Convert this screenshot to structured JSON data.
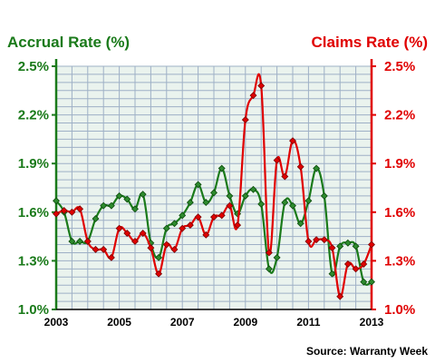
{
  "chart_data": {
    "type": "line",
    "title_left": "Accrual Rate (%)",
    "title_right": "Claims Rate (%)",
    "source": "Source: Warranty Week",
    "x_ticks": [
      "2003",
      "2005",
      "2007",
      "2009",
      "2011",
      "2013"
    ],
    "y_ticks_left": [
      "2.5%",
      "2.2%",
      "1.9%",
      "1.6%",
      "1.3%",
      "1.0%"
    ],
    "y_ticks_right": [
      "2.5%",
      "2.2%",
      "1.9%",
      "1.6%",
      "1.3%",
      "1.0%"
    ],
    "xlim": [
      2003,
      2013
    ],
    "ylim_left": [
      1.0,
      2.5
    ],
    "ylim_right": [
      1.0,
      2.5
    ],
    "grid": true,
    "colors": {
      "accrual": "#1a7a1a",
      "accrual_marker": "#2e8b2e",
      "claims": "#e00000",
      "claims_marker": "#e00000",
      "left_axis": "#1a7a1a",
      "right_axis": "#e00000",
      "grid": "#9eb0c6",
      "plot_bg": "#eaf3ee"
    },
    "series": [
      {
        "name": "Accrual Rate",
        "axis": "left",
        "x": [
          2003.0,
          2003.25,
          2003.5,
          2003.75,
          2004.0,
          2004.25,
          2004.5,
          2004.75,
          2005.0,
          2005.25,
          2005.5,
          2005.75,
          2006.0,
          2006.25,
          2006.5,
          2006.75,
          2007.0,
          2007.25,
          2007.5,
          2007.75,
          2008.0,
          2008.25,
          2008.5,
          2008.75,
          2009.0,
          2009.25,
          2009.5,
          2009.75,
          2010.0,
          2010.25,
          2010.5,
          2010.75,
          2011.0,
          2011.25,
          2011.5,
          2011.75,
          2012.0,
          2012.25,
          2012.5,
          2012.75,
          2013.0
        ],
        "values": [
          1.67,
          1.6,
          1.42,
          1.42,
          1.42,
          1.56,
          1.64,
          1.64,
          1.7,
          1.68,
          1.62,
          1.71,
          1.41,
          1.32,
          1.5,
          1.53,
          1.58,
          1.66,
          1.77,
          1.66,
          1.72,
          1.87,
          1.7,
          1.59,
          1.7,
          1.74,
          1.65,
          1.25,
          1.32,
          1.66,
          1.64,
          1.53,
          1.67,
          1.87,
          1.7,
          1.22,
          1.39,
          1.41,
          1.39,
          1.17,
          1.17
        ]
      },
      {
        "name": "Claims Rate",
        "axis": "right",
        "x": [
          2003.0,
          2003.25,
          2003.5,
          2003.75,
          2004.0,
          2004.25,
          2004.5,
          2004.75,
          2005.0,
          2005.25,
          2005.5,
          2005.75,
          2006.0,
          2006.25,
          2006.5,
          2006.75,
          2007.0,
          2007.25,
          2007.5,
          2007.75,
          2008.0,
          2008.25,
          2008.5,
          2008.75,
          2009.0,
          2009.25,
          2009.5,
          2009.75,
          2010.0,
          2010.25,
          2010.5,
          2010.75,
          2011.0,
          2011.25,
          2011.5,
          2011.75,
          2012.0,
          2012.25,
          2012.5,
          2012.75,
          2013.0
        ],
        "values": [
          1.59,
          1.61,
          1.6,
          1.62,
          1.42,
          1.37,
          1.37,
          1.32,
          1.5,
          1.47,
          1.42,
          1.47,
          1.38,
          1.22,
          1.4,
          1.37,
          1.5,
          1.52,
          1.57,
          1.46,
          1.57,
          1.58,
          1.64,
          1.52,
          2.17,
          2.32,
          2.38,
          1.35,
          1.92,
          1.82,
          2.04,
          1.88,
          1.42,
          1.43,
          1.43,
          1.38,
          1.08,
          1.28,
          1.25,
          1.28,
          1.4
        ]
      }
    ]
  }
}
